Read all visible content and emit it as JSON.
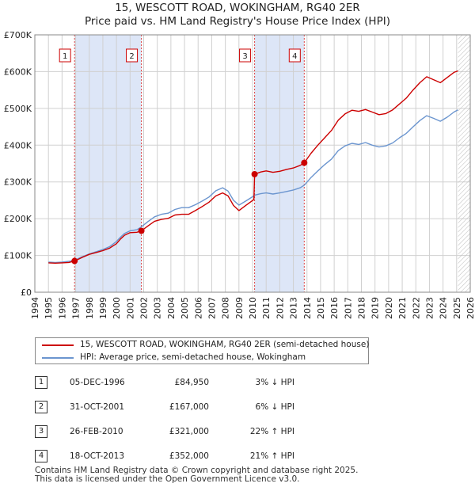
{
  "title_line1": "15, WESCOTT ROAD, WOKINGHAM, RG40 2ER",
  "title_line2": "Price paid vs. HM Land Registry's House Price Index (HPI)",
  "colors": {
    "property": "#cc0000",
    "hpi": "#6b95cf",
    "shade": "#dde6f7",
    "grid": "#d0d0d0"
  },
  "chart_data": {
    "type": "line",
    "title": "15, WESCOTT ROAD, WOKINGHAM, RG40 2ER — Price paid vs. HM Land Registry's House Price Index (HPI)",
    "xlabel": "",
    "ylabel": "",
    "xlim": [
      1994,
      2026
    ],
    "ylim": [
      0,
      700000
    ],
    "grid": true,
    "y_ticks": [
      0,
      100000,
      200000,
      300000,
      400000,
      500000,
      600000,
      700000
    ],
    "y_tick_labels": [
      "£0",
      "£100K",
      "£200K",
      "£300K",
      "£400K",
      "£500K",
      "£600K",
      "£700K"
    ],
    "x_ticks": [
      1994,
      1995,
      1996,
      1997,
      1998,
      1999,
      2000,
      2001,
      2002,
      2003,
      2004,
      2005,
      2006,
      2007,
      2008,
      2009,
      2010,
      2011,
      2012,
      2013,
      2014,
      2015,
      2016,
      2017,
      2018,
      2019,
      2020,
      2021,
      2022,
      2023,
      2024,
      2025,
      2026
    ],
    "shaded_ranges": [
      [
        1996.92,
        2001.83
      ],
      [
        2010.15,
        2013.8
      ]
    ],
    "series": [
      {
        "name": "15, WESCOTT ROAD, WOKINGHAM, RG40 2ER (semi-detached house)",
        "color": "#cc0000",
        "points": [
          [
            1995.0,
            80000
          ],
          [
            1995.5,
            79000
          ],
          [
            1996.0,
            80000
          ],
          [
            1996.5,
            81000
          ],
          [
            1996.92,
            84950
          ],
          [
            1997.5,
            95000
          ],
          [
            1998.0,
            103000
          ],
          [
            1998.5,
            108000
          ],
          [
            1999.0,
            113000
          ],
          [
            1999.5,
            120000
          ],
          [
            2000.0,
            132000
          ],
          [
            2000.3,
            145000
          ],
          [
            2000.6,
            155000
          ],
          [
            2001.0,
            162000
          ],
          [
            2001.5,
            163000
          ],
          [
            2001.83,
            167000
          ],
          [
            2002.3,
            180000
          ],
          [
            2002.8,
            193000
          ],
          [
            2003.3,
            198000
          ],
          [
            2003.8,
            201000
          ],
          [
            2004.3,
            210000
          ],
          [
            2004.8,
            212000
          ],
          [
            2005.3,
            212000
          ],
          [
            2005.8,
            222000
          ],
          [
            2006.3,
            233000
          ],
          [
            2006.8,
            245000
          ],
          [
            2007.3,
            262000
          ],
          [
            2007.8,
            270000
          ],
          [
            2008.2,
            262000
          ],
          [
            2008.6,
            236000
          ],
          [
            2009.0,
            222000
          ],
          [
            2009.5,
            236000
          ],
          [
            2010.1,
            252000
          ],
          [
            2010.15,
            321000
          ],
          [
            2010.6,
            327000
          ],
          [
            2011.0,
            330000
          ],
          [
            2011.5,
            326000
          ],
          [
            2012.0,
            329000
          ],
          [
            2012.5,
            334000
          ],
          [
            2013.0,
            338000
          ],
          [
            2013.5,
            345000
          ],
          [
            2013.8,
            352000
          ],
          [
            2014.3,
            378000
          ],
          [
            2014.8,
            400000
          ],
          [
            2015.3,
            420000
          ],
          [
            2015.8,
            440000
          ],
          [
            2016.3,
            468000
          ],
          [
            2016.8,
            485000
          ],
          [
            2017.3,
            495000
          ],
          [
            2017.8,
            492000
          ],
          [
            2018.3,
            497000
          ],
          [
            2018.8,
            490000
          ],
          [
            2019.3,
            483000
          ],
          [
            2019.8,
            486000
          ],
          [
            2020.3,
            496000
          ],
          [
            2020.8,
            512000
          ],
          [
            2021.3,
            528000
          ],
          [
            2021.8,
            550000
          ],
          [
            2022.3,
            570000
          ],
          [
            2022.8,
            586000
          ],
          [
            2023.3,
            578000
          ],
          [
            2023.8,
            570000
          ],
          [
            2024.3,
            584000
          ],
          [
            2024.8,
            598000
          ],
          [
            2025.1,
            602000
          ]
        ]
      },
      {
        "name": "HPI: Average price, semi-detached house, Wokingham",
        "color": "#6b95cf",
        "points": [
          [
            1995.0,
            82000
          ],
          [
            1995.5,
            81000
          ],
          [
            1996.0,
            82000
          ],
          [
            1996.5,
            84000
          ],
          [
            1996.92,
            87000
          ],
          [
            1997.5,
            97000
          ],
          [
            1998.0,
            104000
          ],
          [
            1998.5,
            110000
          ],
          [
            1999.0,
            116000
          ],
          [
            1999.5,
            124000
          ],
          [
            2000.0,
            138000
          ],
          [
            2000.3,
            150000
          ],
          [
            2000.6,
            160000
          ],
          [
            2001.0,
            167000
          ],
          [
            2001.5,
            170000
          ],
          [
            2001.83,
            178000
          ],
          [
            2002.3,
            192000
          ],
          [
            2002.8,
            205000
          ],
          [
            2003.3,
            212000
          ],
          [
            2003.8,
            215000
          ],
          [
            2004.3,
            225000
          ],
          [
            2004.8,
            230000
          ],
          [
            2005.3,
            230000
          ],
          [
            2005.8,
            238000
          ],
          [
            2006.3,
            248000
          ],
          [
            2006.8,
            259000
          ],
          [
            2007.3,
            276000
          ],
          [
            2007.8,
            284000
          ],
          [
            2008.2,
            275000
          ],
          [
            2008.6,
            250000
          ],
          [
            2009.0,
            237000
          ],
          [
            2009.5,
            248000
          ],
          [
            2010.1,
            262000
          ],
          [
            2010.15,
            264000
          ],
          [
            2010.6,
            268000
          ],
          [
            2011.0,
            270000
          ],
          [
            2011.5,
            267000
          ],
          [
            2012.0,
            270000
          ],
          [
            2012.5,
            274000
          ],
          [
            2013.0,
            278000
          ],
          [
            2013.5,
            284000
          ],
          [
            2013.8,
            291000
          ],
          [
            2014.3,
            312000
          ],
          [
            2014.8,
            330000
          ],
          [
            2015.3,
            347000
          ],
          [
            2015.8,
            362000
          ],
          [
            2016.3,
            385000
          ],
          [
            2016.8,
            398000
          ],
          [
            2017.3,
            405000
          ],
          [
            2017.8,
            402000
          ],
          [
            2018.3,
            407000
          ],
          [
            2018.8,
            400000
          ],
          [
            2019.3,
            395000
          ],
          [
            2019.8,
            398000
          ],
          [
            2020.3,
            406000
          ],
          [
            2020.8,
            420000
          ],
          [
            2021.3,
            432000
          ],
          [
            2021.8,
            450000
          ],
          [
            2022.3,
            467000
          ],
          [
            2022.8,
            480000
          ],
          [
            2023.3,
            473000
          ],
          [
            2023.8,
            465000
          ],
          [
            2024.3,
            476000
          ],
          [
            2024.8,
            490000
          ],
          [
            2025.1,
            496000
          ]
        ]
      }
    ],
    "sale_markers": [
      {
        "label": "1",
        "x": 1996.92,
        "y": 84950
      },
      {
        "label": "2",
        "x": 2001.83,
        "y": 167000
      },
      {
        "label": "3",
        "x": 2010.15,
        "y": 321000
      },
      {
        "label": "4",
        "x": 2013.8,
        "y": 352000
      }
    ]
  },
  "legend": {
    "property_label": "15, WESCOTT ROAD, WOKINGHAM, RG40 2ER (semi-detached house)",
    "hpi_label": "HPI: Average price, semi-detached house, Wokingham"
  },
  "sales": [
    {
      "num": "1",
      "date": "05-DEC-1996",
      "price": "£84,950",
      "hpi": "3% ↓ HPI"
    },
    {
      "num": "2",
      "date": "31-OCT-2001",
      "price": "£167,000",
      "hpi": "6% ↓ HPI"
    },
    {
      "num": "3",
      "date": "26-FEB-2010",
      "price": "£321,000",
      "hpi": "22% ↑ HPI"
    },
    {
      "num": "4",
      "date": "18-OCT-2013",
      "price": "£352,000",
      "hpi": "21% ↑ HPI"
    }
  ],
  "footer_line1": "Contains HM Land Registry data © Crown copyright and database right 2025.",
  "footer_line2": "This data is licensed under the Open Government Licence v3.0."
}
